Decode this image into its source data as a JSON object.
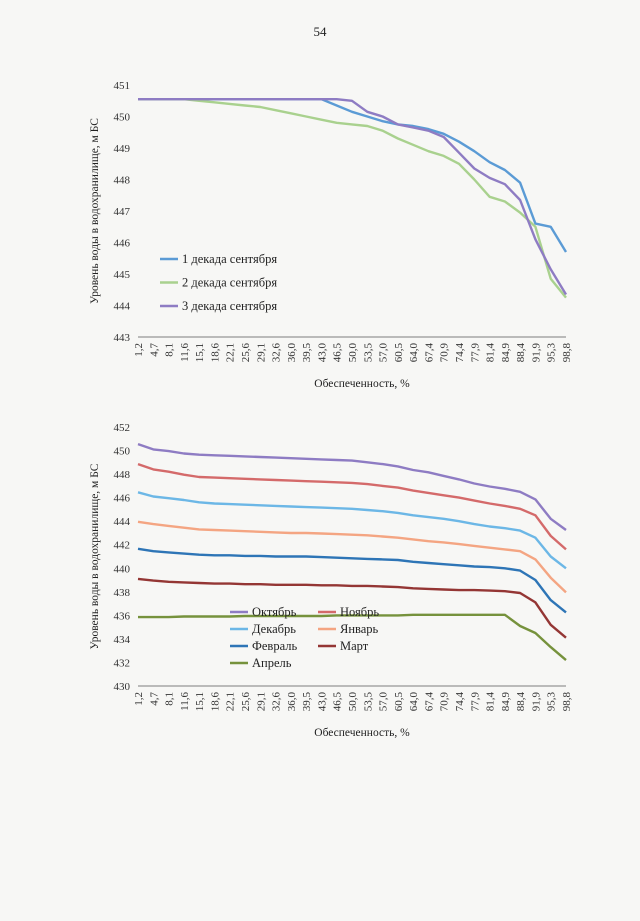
{
  "page": {
    "number": "54"
  },
  "x_categories": [
    "1,2",
    "4,7",
    "8,1",
    "11,6",
    "15,1",
    "18,6",
    "22,1",
    "25,6",
    "29,1",
    "32,6",
    "36,0",
    "39,5",
    "43,0",
    "46,5",
    "50,0",
    "53,5",
    "57,0",
    "60,5",
    "64,0",
    "67,4",
    "70,9",
    "74,4",
    "77,9",
    "81,4",
    "84,9",
    "88,4",
    "91,9",
    "95,3",
    "98,8"
  ],
  "chart_data": [
    {
      "type": "line",
      "title": "",
      "xlabel": "Обеспеченность, %",
      "ylabel": "Уровень воды в водохранилище, м БС",
      "ylim": [
        443,
        451
      ],
      "yticks": [
        443,
        444,
        445,
        446,
        447,
        448,
        449,
        450,
        451
      ],
      "legend": "bottom-left",
      "x": [
        1.2,
        4.7,
        8.1,
        11.6,
        15.1,
        18.6,
        22.1,
        25.6,
        29.1,
        32.6,
        36.0,
        39.5,
        43.0,
        46.5,
        50.0,
        53.5,
        57.0,
        60.5,
        64.0,
        67.4,
        70.9,
        74.4,
        77.9,
        81.4,
        84.9,
        88.4,
        91.9,
        95.3,
        98.8
      ],
      "series": [
        {
          "name": "1 декада сентября",
          "color": "#5b9bd5",
          "values": [
            450.55,
            450.55,
            450.55,
            450.55,
            450.55,
            450.55,
            450.55,
            450.55,
            450.55,
            450.55,
            450.55,
            450.55,
            450.55,
            450.35,
            450.15,
            450.0,
            449.85,
            449.75,
            449.7,
            449.6,
            449.45,
            449.2,
            448.9,
            448.55,
            448.3,
            447.9,
            446.6,
            446.5,
            445.7
          ]
        },
        {
          "name": "2 декада сентября",
          "color": "#a9d18e",
          "values": [
            450.55,
            450.55,
            450.55,
            450.55,
            450.5,
            450.45,
            450.4,
            450.35,
            450.3,
            450.2,
            450.1,
            450.0,
            449.9,
            449.8,
            449.75,
            449.7,
            449.55,
            449.3,
            449.1,
            448.9,
            448.75,
            448.5,
            448.0,
            447.45,
            447.3,
            446.95,
            446.5,
            444.85,
            444.25
          ]
        },
        {
          "name": "3 декада сентября",
          "color": "#8e7cc3",
          "values": [
            450.55,
            450.55,
            450.55,
            450.55,
            450.55,
            450.55,
            450.55,
            450.55,
            450.55,
            450.55,
            450.55,
            450.55,
            450.55,
            450.55,
            450.5,
            450.15,
            450.0,
            449.75,
            449.65,
            449.55,
            449.35,
            448.85,
            448.35,
            448.05,
            447.85,
            447.35,
            446.1,
            445.15,
            444.35
          ]
        }
      ]
    },
    {
      "type": "line",
      "title": "",
      "xlabel": "Обеспеченность, %",
      "ylabel": "Уровень воды в водохранилище, м БС",
      "ylim": [
        430,
        452
      ],
      "yticks": [
        430,
        432,
        434,
        436,
        438,
        440,
        442,
        444,
        446,
        448,
        450,
        452
      ],
      "legend": "bottom-left",
      "x": [
        1.2,
        4.7,
        8.1,
        11.6,
        15.1,
        18.6,
        22.1,
        25.6,
        29.1,
        32.6,
        36.0,
        39.5,
        43.0,
        46.5,
        50.0,
        53.5,
        57.0,
        60.5,
        64.0,
        67.4,
        70.9,
        74.4,
        77.9,
        81.4,
        84.9,
        88.4,
        91.9,
        95.3,
        98.8
      ],
      "series": [
        {
          "name": "Октябрь",
          "color": "#8e7cc3",
          "values": [
            450.55,
            450.1,
            449.95,
            449.75,
            449.65,
            449.6,
            449.55,
            449.5,
            449.45,
            449.4,
            449.35,
            449.3,
            449.25,
            449.2,
            449.15,
            449.0,
            448.85,
            448.65,
            448.35,
            448.15,
            447.85,
            447.55,
            447.2,
            446.95,
            446.75,
            446.5,
            445.85,
            444.2,
            443.25
          ]
        },
        {
          "name": "Ноябрь",
          "color": "#d46a6a",
          "values": [
            448.85,
            448.4,
            448.2,
            447.95,
            447.75,
            447.7,
            447.65,
            447.6,
            447.55,
            447.5,
            447.45,
            447.4,
            447.35,
            447.3,
            447.25,
            447.15,
            447.0,
            446.85,
            446.6,
            446.4,
            446.2,
            446.0,
            445.75,
            445.5,
            445.3,
            445.05,
            444.5,
            442.75,
            441.6
          ]
        },
        {
          "name": "Декабрь",
          "color": "#6cb7e6",
          "values": [
            446.45,
            446.1,
            445.95,
            445.8,
            445.6,
            445.5,
            445.45,
            445.4,
            445.35,
            445.3,
            445.25,
            445.2,
            445.15,
            445.1,
            445.05,
            444.95,
            444.85,
            444.7,
            444.5,
            444.35,
            444.2,
            444.0,
            443.75,
            443.55,
            443.4,
            443.2,
            442.6,
            441.0,
            440.0
          ]
        },
        {
          "name": "Январь",
          "color": "#f4a582",
          "values": [
            443.95,
            443.75,
            443.6,
            443.45,
            443.3,
            443.25,
            443.2,
            443.15,
            443.1,
            443.05,
            443.0,
            443.0,
            442.95,
            442.9,
            442.85,
            442.8,
            442.7,
            442.6,
            442.45,
            442.3,
            442.2,
            442.05,
            441.9,
            441.75,
            441.6,
            441.45,
            440.75,
            439.2,
            437.95
          ]
        },
        {
          "name": "Февраль",
          "color": "#2e75b6",
          "values": [
            441.65,
            441.45,
            441.35,
            441.25,
            441.15,
            441.1,
            441.1,
            441.05,
            441.05,
            441.0,
            441.0,
            441.0,
            440.95,
            440.9,
            440.85,
            440.8,
            440.75,
            440.7,
            440.55,
            440.45,
            440.35,
            440.25,
            440.15,
            440.1,
            440.0,
            439.8,
            439.0,
            437.3,
            436.25
          ]
        },
        {
          "name": "Март",
          "color": "#943634",
          "values": [
            439.1,
            438.95,
            438.85,
            438.8,
            438.75,
            438.7,
            438.7,
            438.65,
            438.65,
            438.6,
            438.6,
            438.6,
            438.55,
            438.55,
            438.5,
            438.5,
            438.45,
            438.4,
            438.3,
            438.25,
            438.2,
            438.15,
            438.15,
            438.1,
            438.05,
            437.9,
            437.1,
            435.2,
            434.1
          ]
        },
        {
          "name": "Апрель",
          "color": "#76923c",
          "values": [
            435.85,
            435.85,
            435.85,
            435.9,
            435.9,
            435.9,
            435.9,
            435.95,
            435.95,
            435.95,
            435.95,
            435.95,
            435.95,
            436.0,
            436.0,
            436.0,
            436.0,
            436.0,
            436.05,
            436.05,
            436.05,
            436.05,
            436.05,
            436.05,
            436.05,
            435.1,
            434.5,
            433.3,
            432.2
          ]
        }
      ]
    }
  ]
}
